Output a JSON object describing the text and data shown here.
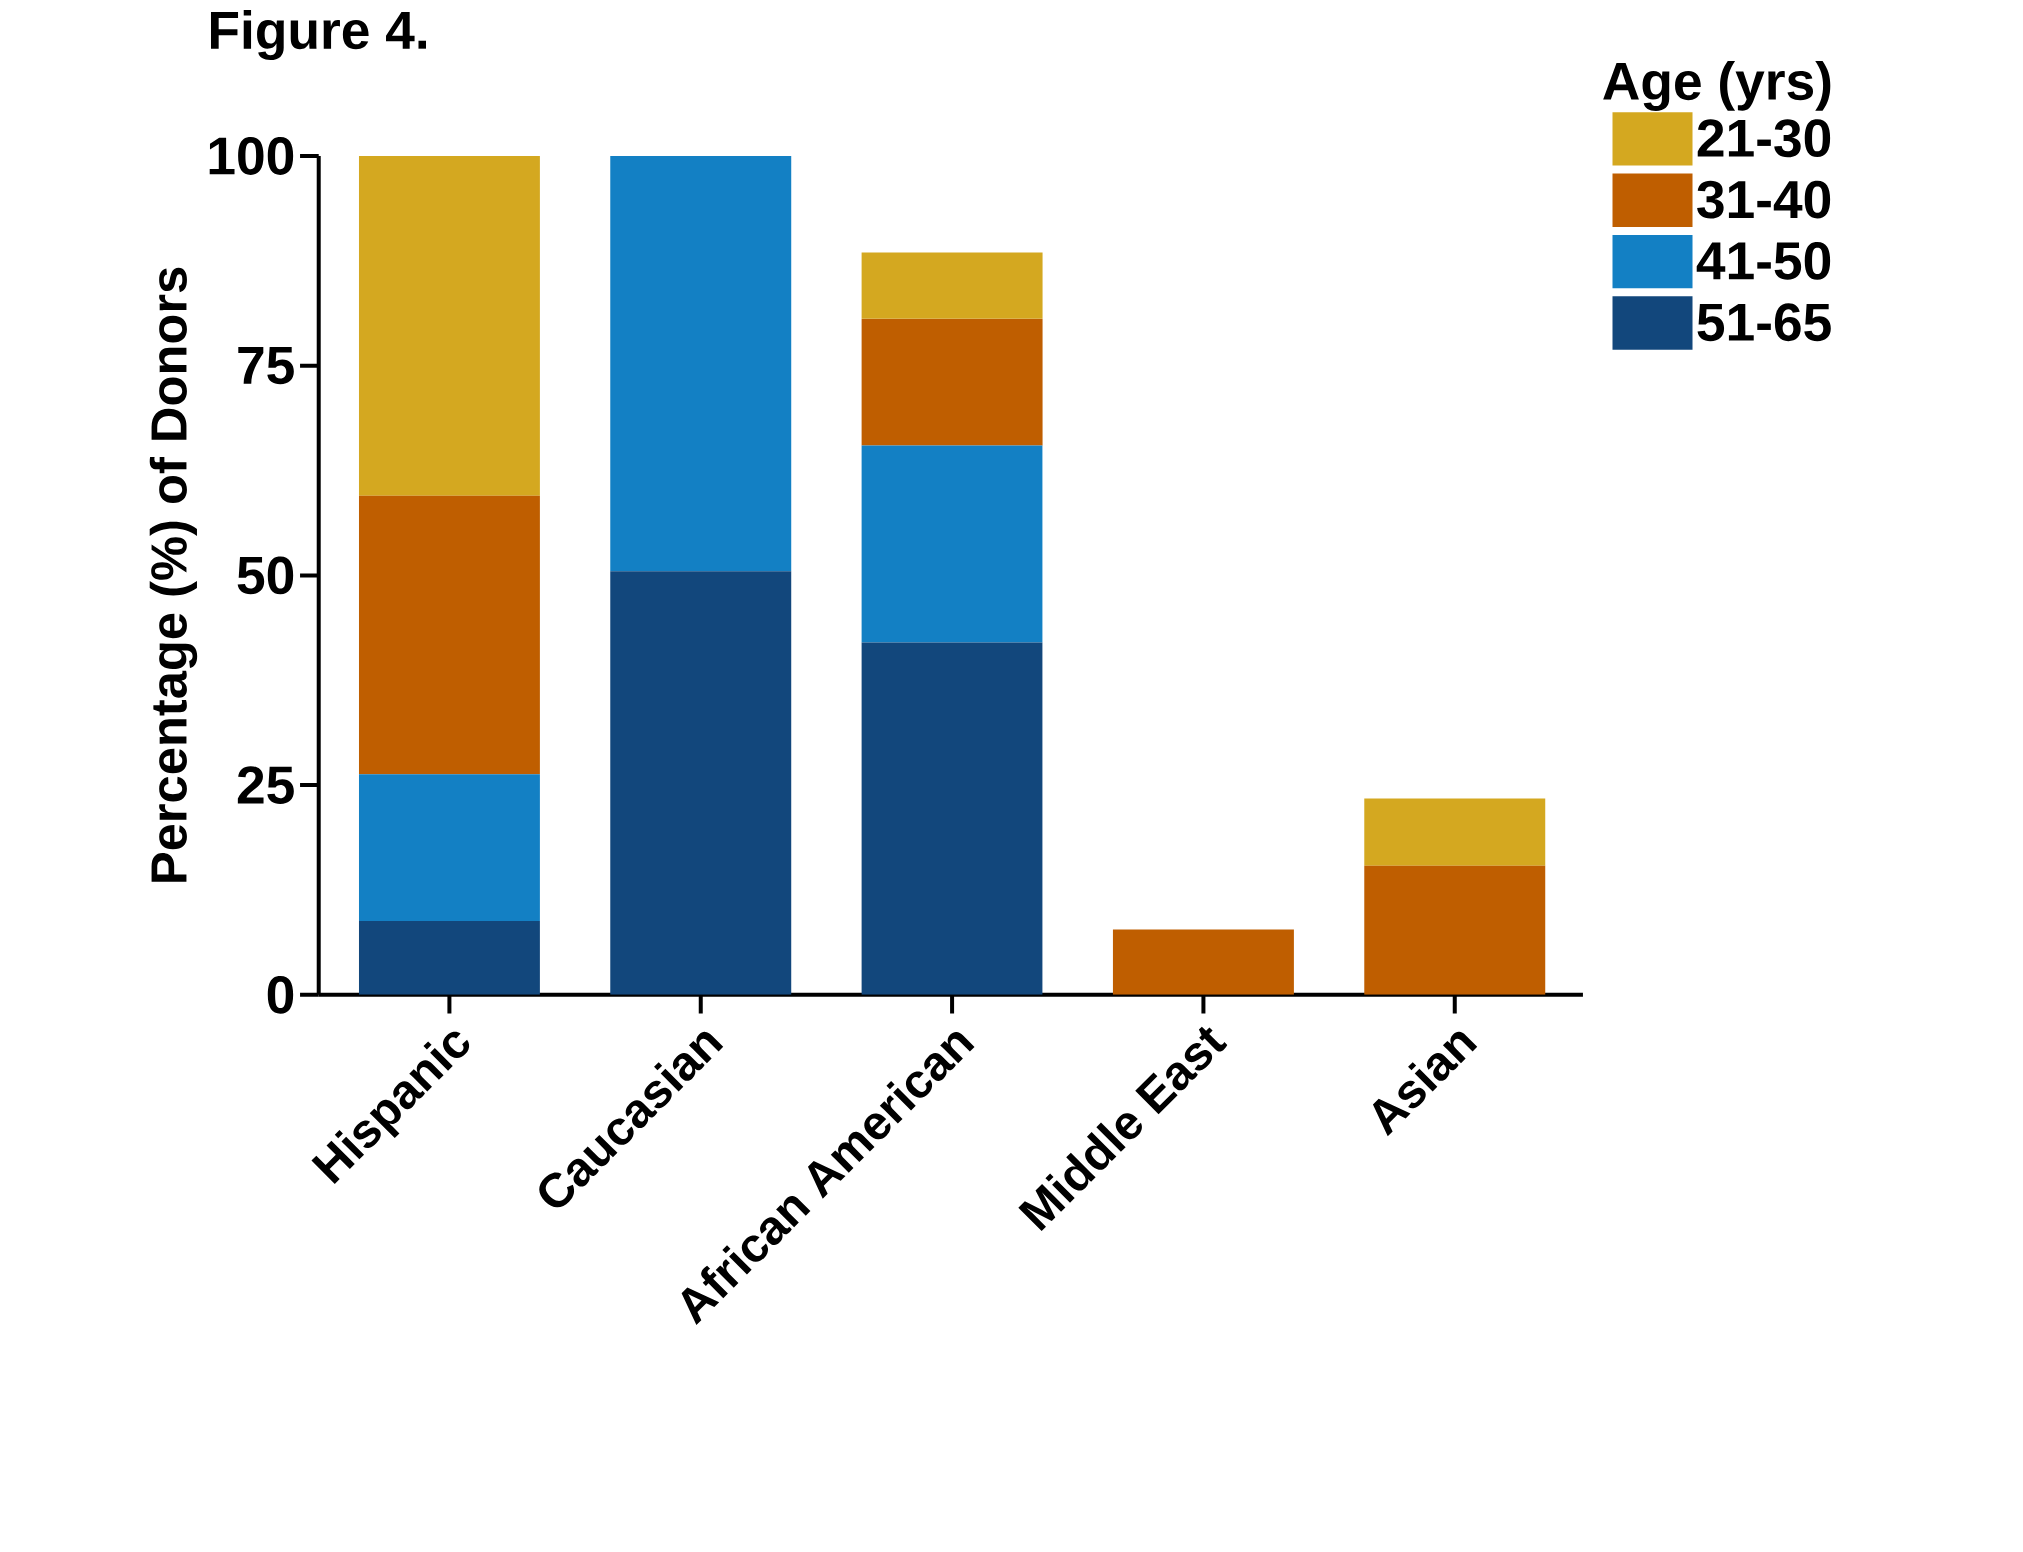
{
  "chart_data": {
    "type": "bar",
    "title": "Figure 4.",
    "ylabel": "Percentage (%) of Donors",
    "legend_title": "Age (yrs)",
    "categories": [
      "Hispanic",
      "Caucasian",
      "African American",
      "Middle East",
      "Asian"
    ],
    "stacked": true,
    "legend": "top right",
    "series": [
      {
        "name": "51-65",
        "color": "#12477c",
        "values": [
          8.8,
          50.5,
          42.0,
          0,
          0
        ]
      },
      {
        "name": "41-50",
        "color": "#1380c4",
        "values": [
          17.5,
          49.5,
          23.5,
          0,
          0
        ]
      },
      {
        "name": "31-40",
        "color": "#bf5e00",
        "values": [
          33.2,
          0,
          15.1,
          7.8,
          15.4
        ]
      },
      {
        "name": "21-30",
        "color": "#d4a820",
        "values": [
          40.5,
          0,
          7.9,
          0,
          8.0
        ]
      }
    ],
    "ylim": [
      0,
      100
    ],
    "yticks": [
      0,
      25,
      50,
      75,
      100
    ]
  }
}
